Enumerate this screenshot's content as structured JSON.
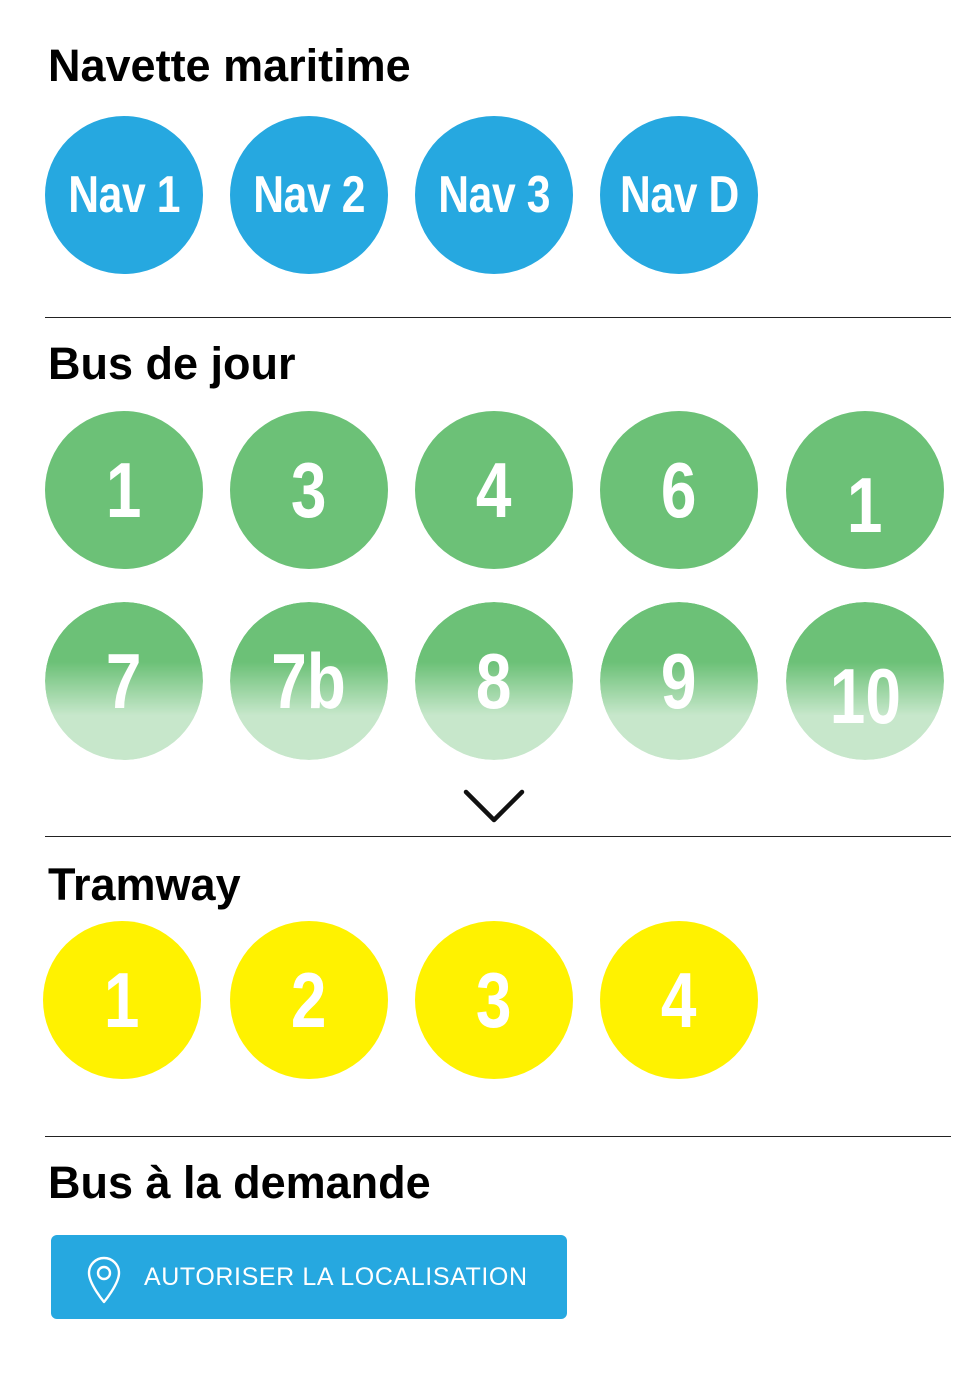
{
  "colors": {
    "navette": "#26a8e0",
    "bus_jour": "#6cc177",
    "tramway": "#fff200",
    "button": "#26a8e0",
    "divider": "#222222"
  },
  "sections": {
    "navette": {
      "title": "Navette maritime",
      "lines": [
        "Nav 1",
        "Nav 2",
        "Nav 3",
        "Nav D"
      ]
    },
    "bus_jour": {
      "title": "Bus de jour",
      "lines": [
        "1",
        "3",
        "4",
        "6",
        "1",
        "7",
        "7b",
        "8",
        "9",
        "10"
      ],
      "expand_icon": "chevron-down-icon"
    },
    "tramway": {
      "title": "Tramway",
      "lines": [
        "1",
        "2",
        "3",
        "4"
      ]
    },
    "bus_demande": {
      "title": "Bus à la demande",
      "button_label": "AUTORISER LA LOCALISATION",
      "button_icon": "location-pin-icon"
    }
  }
}
